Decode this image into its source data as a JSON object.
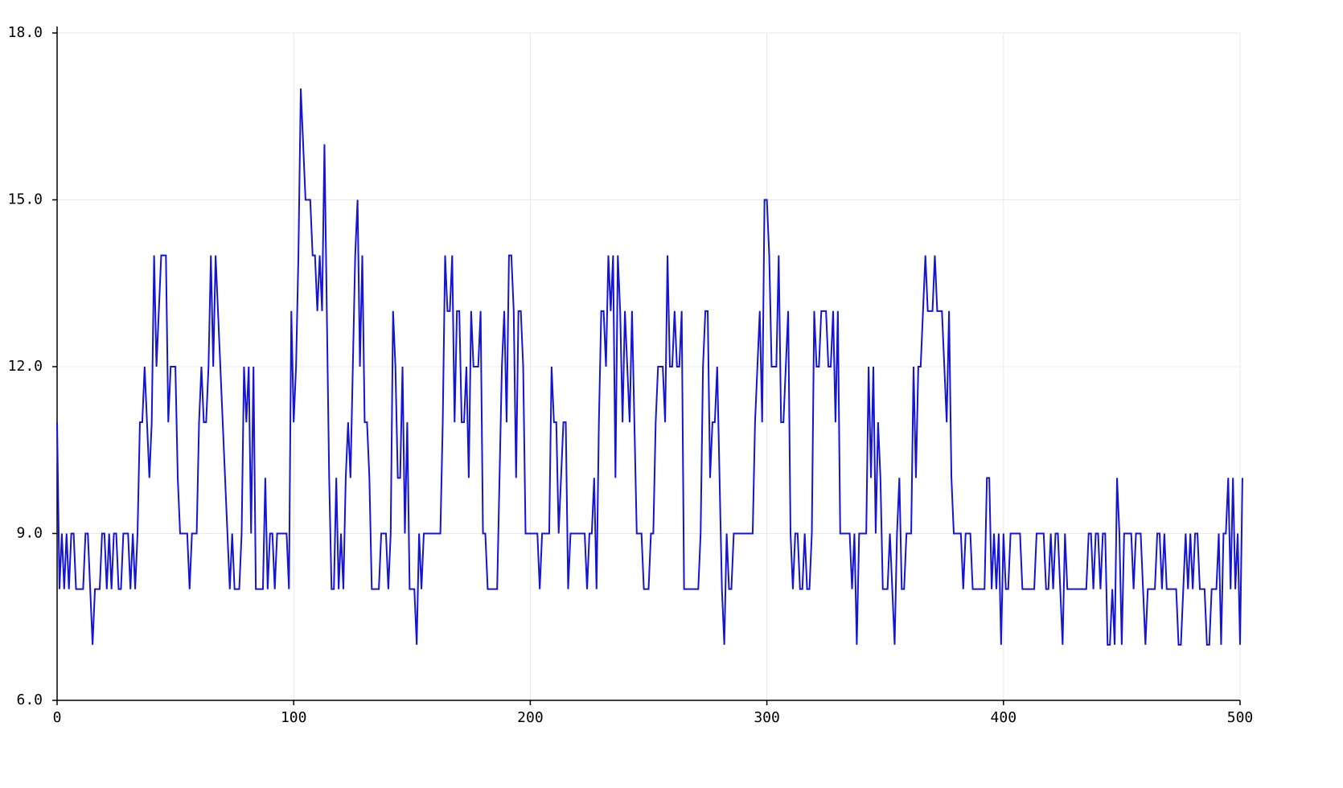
{
  "chart_data": {
    "type": "line",
    "series": [
      {
        "color": "#1414d4",
        "values": [
          11,
          8,
          9,
          8,
          9,
          8,
          9,
          9,
          8,
          8,
          8,
          8,
          9,
          9,
          8,
          7,
          8,
          8,
          8,
          9,
          9,
          8,
          9,
          8,
          9,
          9,
          8,
          8,
          9,
          9,
          9,
          8,
          9,
          8,
          9,
          11,
          11,
          12,
          11,
          10,
          11,
          14,
          12,
          13,
          14,
          14,
          14,
          11,
          12,
          12,
          12,
          10,
          9,
          9,
          9,
          9,
          8,
          9,
          9,
          9,
          11,
          12,
          11,
          11,
          12,
          14,
          12,
          14,
          13,
          12,
          11,
          10,
          9,
          8,
          9,
          8,
          8,
          8,
          9,
          12,
          11,
          12,
          9,
          12,
          8,
          8,
          8,
          8,
          10,
          8,
          9,
          9,
          8,
          9,
          9,
          9,
          9,
          9,
          8,
          13,
          11,
          12,
          14,
          17,
          16,
          15,
          15,
          15,
          14,
          14,
          13,
          14,
          13,
          16,
          13,
          10,
          8,
          8,
          10,
          8,
          9,
          8,
          10,
          11,
          10,
          12,
          14,
          15,
          12,
          14,
          11,
          11,
          10,
          8,
          8,
          8,
          8,
          9,
          9,
          9,
          8,
          9,
          13,
          12,
          10,
          10,
          12,
          9,
          11,
          8,
          8,
          8,
          7,
          9,
          8,
          9,
          9,
          9,
          9,
          9,
          9,
          9,
          9,
          11,
          14,
          13,
          13,
          14,
          11,
          13,
          13,
          11,
          11,
          12,
          10,
          13,
          12,
          12,
          12,
          13,
          9,
          9,
          8,
          8,
          8,
          8,
          8,
          10,
          12,
          13,
          11,
          14,
          14,
          13,
          10,
          13,
          13,
          12,
          9,
          9,
          9,
          9,
          9,
          9,
          8,
          9,
          9,
          9,
          9,
          12,
          11,
          11,
          9,
          10,
          11,
          11,
          8,
          9,
          9,
          9,
          9,
          9,
          9,
          9,
          8,
          9,
          9,
          10,
          8,
          11,
          13,
          13,
          12,
          14,
          13,
          14,
          10,
          14,
          13,
          11,
          13,
          12,
          11,
          13,
          11,
          9,
          9,
          9,
          8,
          8,
          8,
          9,
          9,
          11,
          12,
          12,
          12,
          11,
          14,
          12,
          12,
          13,
          12,
          12,
          13,
          8,
          8,
          8,
          8,
          8,
          8,
          8,
          9,
          12,
          13,
          13,
          10,
          11,
          11,
          12,
          10,
          8,
          7,
          9,
          8,
          8,
          9,
          9,
          9,
          9,
          9,
          9,
          9,
          9,
          9,
          11,
          12,
          13,
          11,
          15,
          15,
          14,
          12,
          12,
          12,
          14,
          11,
          11,
          12,
          13,
          9,
          8,
          9,
          9,
          8,
          8,
          9,
          8,
          8,
          9,
          13,
          12,
          12,
          13,
          13,
          13,
          12,
          12,
          13,
          11,
          13,
          9,
          9,
          9,
          9,
          9,
          8,
          9,
          7,
          9,
          9,
          9,
          9,
          12,
          10,
          12,
          9,
          11,
          10,
          8,
          8,
          8,
          9,
          8,
          7,
          9,
          10,
          8,
          8,
          9,
          9,
          9,
          12,
          10,
          12,
          12,
          13,
          14,
          13,
          13,
          13,
          14,
          13,
          13,
          13,
          12,
          11,
          13,
          10,
          9,
          9,
          9,
          9,
          8,
          9,
          9,
          9,
          8,
          8,
          8,
          8,
          8,
          8,
          10,
          10,
          8,
          9,
          8,
          9,
          7,
          9,
          8,
          8,
          9,
          9,
          9,
          9,
          9,
          8,
          8,
          8,
          8,
          8,
          8,
          9,
          9,
          9,
          9,
          8,
          8,
          9,
          8,
          9,
          9,
          8,
          7,
          9,
          8,
          8,
          8,
          8,
          8,
          8,
          8,
          8,
          8,
          9,
          9,
          8,
          9,
          9,
          8,
          9,
          9,
          7,
          7,
          8,
          7,
          10,
          9,
          7,
          9,
          9,
          9,
          9,
          8,
          9,
          9,
          9,
          8,
          7,
          8,
          8,
          8,
          8,
          9,
          9,
          8,
          9,
          8,
          8,
          8,
          8,
          8,
          7,
          7,
          8,
          9,
          8,
          9,
          8,
          9,
          9,
          8,
          8,
          8,
          7,
          7,
          8,
          8,
          8,
          9,
          7,
          9,
          9,
          10,
          8,
          10,
          8,
          9,
          7,
          10
        ]
      }
    ],
    "xlim": [
      0,
      500
    ],
    "xticks": [
      0,
      100,
      200,
      300,
      400,
      500
    ],
    "ylim": [
      6,
      18
    ],
    "yticks": [
      {
        "value": 6,
        "label": "6.0"
      },
      {
        "value": 9,
        "label": "9.0"
      },
      {
        "value": 12,
        "label": "12.0"
      },
      {
        "value": 15,
        "label": "15.0"
      },
      {
        "value": 18,
        "label": "18.0"
      }
    ],
    "grid": true
  }
}
